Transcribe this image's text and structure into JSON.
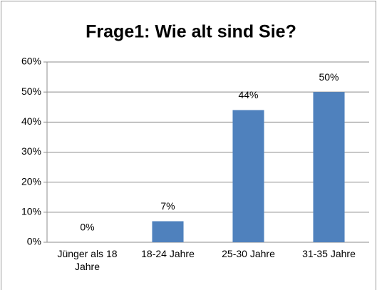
{
  "chart_data": {
    "type": "bar",
    "title": "Frage1: Wie alt sind Sie?",
    "categories": [
      "Jünger als 18 Jahre",
      "18-24 Jahre",
      "25-30 Jahre",
      "31-35 Jahre"
    ],
    "values": [
      0,
      7,
      44,
      50
    ],
    "value_labels": [
      "0%",
      "7%",
      "44%",
      "50%"
    ],
    "color": "#4f81bd",
    "ylim": [
      0,
      60
    ],
    "yticks": [
      {
        "value": 0,
        "label": "0%"
      },
      {
        "value": 10,
        "label": "10%"
      },
      {
        "value": 20,
        "label": "20%"
      },
      {
        "value": 30,
        "label": "30%"
      },
      {
        "value": 40,
        "label": "40%"
      },
      {
        "value": 50,
        "label": "50%"
      },
      {
        "value": 60,
        "label": "60%"
      }
    ],
    "grid": true
  }
}
